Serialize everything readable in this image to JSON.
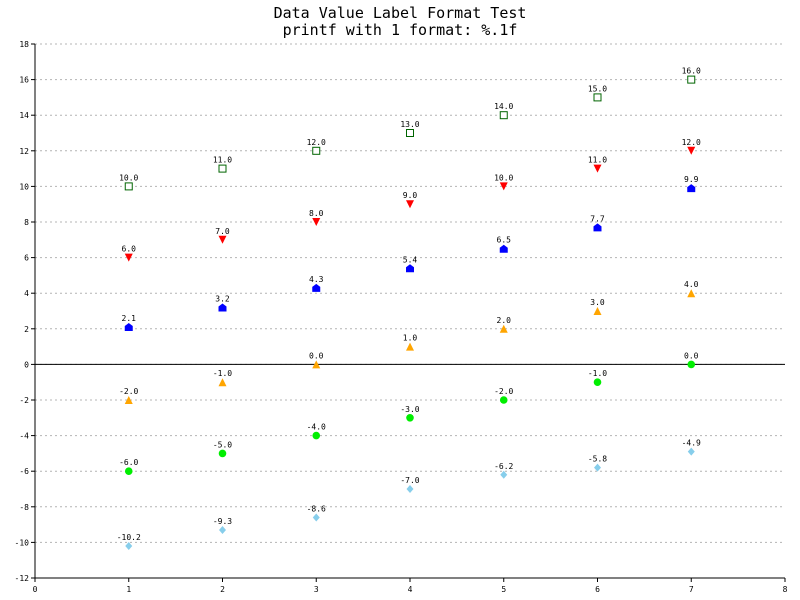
{
  "chart_data": {
    "type": "scatter",
    "title": "Data Value Label Format Test",
    "subtitle": "printf with 1 format: %.1f",
    "xlabel": "",
    "ylabel": "",
    "xlim": [
      0,
      8
    ],
    "ylim": [
      -12,
      18
    ],
    "x_ticks": [
      0,
      1,
      2,
      3,
      4,
      5,
      6,
      7,
      8
    ],
    "y_ticks": [
      -12,
      -10,
      -8,
      -6,
      -4,
      -2,
      0,
      2,
      4,
      6,
      8,
      10,
      12,
      14,
      16,
      18
    ],
    "grid": "horizontal dashed",
    "legend": "none",
    "x": [
      1,
      2,
      3,
      4,
      5,
      6,
      7
    ],
    "series": [
      {
        "marker": "square-open",
        "color": "#006400",
        "values": [
          10,
          11,
          12,
          13,
          14,
          15,
          16
        ],
        "labels": [
          "10.0",
          "11.0",
          "12.0",
          "13.0",
          "14.0",
          "15.0",
          "16.0"
        ]
      },
      {
        "marker": "triangle-down",
        "color": "#ff0000",
        "values": [
          6,
          7,
          8,
          9,
          10,
          11,
          12
        ],
        "labels": [
          "6.0",
          "7.0",
          "8.0",
          "9.0",
          "10.0",
          "11.0",
          "12.0"
        ]
      },
      {
        "marker": "house",
        "color": "#0000ff",
        "values": [
          2.1,
          3.2,
          4.3,
          5.4,
          6.5,
          7.7,
          9.9
        ],
        "labels": [
          "2.1",
          "3.2",
          "4.3",
          "5.4",
          "6.5",
          "7.7",
          "9.9"
        ]
      },
      {
        "marker": "triangle-up",
        "color": "#ffa500",
        "values": [
          -2,
          -1,
          0,
          1,
          2,
          3,
          4
        ],
        "labels": [
          "-2.0",
          "-1.0",
          "0.0",
          "1.0",
          "2.0",
          "3.0",
          "4.0"
        ]
      },
      {
        "marker": "circle",
        "color": "#00ee00",
        "values": [
          -6,
          -5,
          -4,
          -3,
          -2,
          -1,
          0
        ],
        "labels": [
          "-6.0",
          "-5.0",
          "-4.0",
          "-3.0",
          "-2.0",
          "-1.0",
          "0.0"
        ]
      },
      {
        "marker": "diamond",
        "color": "#87ceeb",
        "values": [
          -10.2,
          -9.3,
          -8.6,
          -7.0,
          -6.2,
          -5.8,
          -4.9
        ],
        "labels": [
          "-10.2",
          "-9.3",
          "-8.6",
          "-7.0",
          "-6.2",
          "-5.8",
          "-4.9"
        ]
      }
    ]
  }
}
